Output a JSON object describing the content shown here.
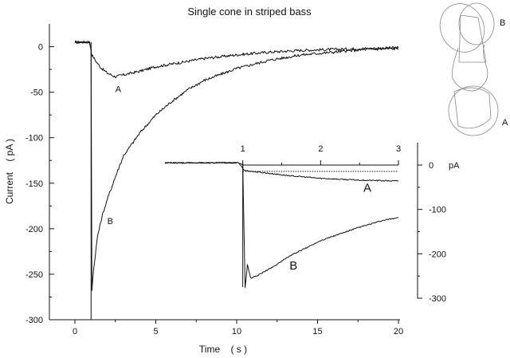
{
  "chart_data": [
    {
      "type": "line",
      "title": "Single cone in striped bass",
      "xlabel": "Time    ( s )",
      "ylabel": "Current    ( pA )",
      "xlim": [
        0,
        20
      ],
      "ylim": [
        -300,
        25
      ],
      "x_ticks": [
        0,
        5,
        10,
        15,
        20
      ],
      "y_ticks": [
        0,
        -50,
        -100,
        -150,
        -200,
        -250,
        -300
      ],
      "grid": false,
      "series": [
        {
          "name": "A",
          "x": [
            0,
            0.5,
            0.9,
            1.0,
            1.05,
            1.3,
            1.6,
            2.0,
            2.5,
            3.0,
            4.0,
            5.0,
            6.0,
            8.0,
            10.0,
            12.0,
            14.0,
            16.0,
            18.0,
            20.0
          ],
          "y": [
            5,
            5,
            5,
            -4,
            -9,
            -16,
            -23,
            -29,
            -33,
            -31,
            -27,
            -22,
            -19,
            -13,
            -9,
            -6,
            -4,
            -3,
            -2,
            -1
          ]
        },
        {
          "name": "B",
          "x": [
            0,
            0.5,
            0.9,
            1.0,
            1.05,
            1.1,
            1.2,
            1.4,
            1.7,
            2.0,
            2.5,
            3.0,
            4.0,
            5.0,
            6.0,
            7.0,
            8.0,
            10.0,
            12.0,
            14.0,
            16.0,
            18.0,
            20.0
          ],
          "y": [
            5,
            5,
            5,
            -2,
            -268,
            -255,
            -238,
            -208,
            -185,
            -168,
            -143,
            -120,
            -95,
            -75,
            -60,
            -47,
            -37,
            -24,
            -15,
            -9,
            -6,
            -3,
            -2
          ]
        }
      ],
      "annotations": [
        {
          "text": "A",
          "x": 2.5,
          "y": -50
        },
        {
          "text": "B",
          "x": 2.0,
          "y": -195
        }
      ]
    },
    {
      "type": "line",
      "xlabel": "",
      "ylabel": "",
      "xlim": [
        0,
        3
      ],
      "ylim": [
        -300,
        0
      ],
      "x_ticks": [
        1,
        2,
        3
      ],
      "y_ticks": [
        0,
        -100,
        -200,
        -300
      ],
      "y_unit": "pA",
      "baseline": 0,
      "series": [
        {
          "name": "A",
          "x": [
            0,
            0.5,
            0.95,
            1.0,
            1.02,
            1.1,
            1.3,
            1.6,
            2.0,
            2.5,
            3.0
          ],
          "y": [
            5,
            5,
            5,
            -7,
            -12,
            -14,
            -18,
            -24,
            -30,
            -34,
            -36
          ]
        },
        {
          "name": "B",
          "x": [
            0,
            0.5,
            0.95,
            1.0,
            1.03,
            1.06,
            1.1,
            1.2,
            1.4,
            1.6,
            1.8,
            2.0,
            2.2,
            2.5,
            2.8,
            3.0
          ],
          "y": [
            5,
            5,
            5,
            0,
            -275,
            -225,
            -255,
            -248,
            -228,
            -205,
            -188,
            -170,
            -158,
            -140,
            -125,
            -118
          ]
        }
      ],
      "annotations": [
        {
          "text": "A",
          "x": 2.55,
          "y": -60
        },
        {
          "text": "B",
          "x": 1.6,
          "y": -235
        }
      ]
    }
  ],
  "cell_diagram": {
    "labels": [
      "B",
      "A"
    ]
  }
}
